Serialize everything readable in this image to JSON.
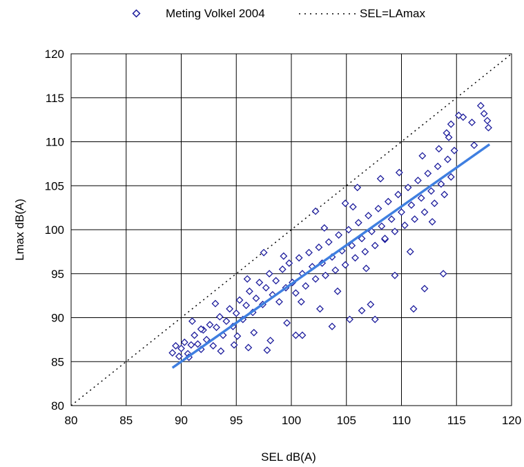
{
  "chart_data": {
    "type": "scatter",
    "title": "",
    "xlabel": "SEL dB(A)",
    "ylabel": "Lmax dB(A)",
    "xlim": [
      80,
      120
    ],
    "ylim": [
      80,
      120
    ],
    "xticks": [
      80,
      85,
      90,
      95,
      100,
      105,
      110,
      115,
      120
    ],
    "yticks": [
      80,
      85,
      90,
      95,
      100,
      105,
      110,
      115,
      120
    ],
    "grid": true,
    "legend": {
      "placement": "top",
      "entries": [
        {
          "label": "Meting Volkel 2004",
          "marker": "open-diamond",
          "color": "#1c1c9c"
        },
        {
          "label": "SEL=LAmax",
          "style": "dotted-line",
          "color": "#000000"
        }
      ]
    },
    "series": [
      {
        "name": "Meting Volkel 2004",
        "marker": "open-diamond",
        "color": "#1c1c9c",
        "points": [
          [
            89.2,
            86.0
          ],
          [
            89.5,
            86.8
          ],
          [
            89.8,
            85.6
          ],
          [
            90.0,
            86.5
          ],
          [
            90.3,
            87.2
          ],
          [
            90.6,
            85.9
          ],
          [
            90.9,
            86.9
          ],
          [
            91.2,
            88.0
          ],
          [
            91.5,
            87.0
          ],
          [
            91.8,
            86.4
          ],
          [
            92.0,
            88.6
          ],
          [
            92.3,
            87.5
          ],
          [
            92.6,
            89.2
          ],
          [
            92.9,
            86.8
          ],
          [
            93.2,
            88.9
          ],
          [
            93.5,
            90.1
          ],
          [
            93.8,
            88.0
          ],
          [
            94.1,
            89.6
          ],
          [
            94.4,
            91.0
          ],
          [
            94.7,
            89.0
          ],
          [
            95.0,
            90.5
          ],
          [
            95.3,
            92.0
          ],
          [
            95.6,
            89.8
          ],
          [
            95.9,
            91.4
          ],
          [
            96.2,
            93.0
          ],
          [
            96.5,
            90.6
          ],
          [
            96.8,
            92.2
          ],
          [
            97.1,
            94.0
          ],
          [
            97.4,
            91.5
          ],
          [
            97.7,
            93.4
          ],
          [
            98.0,
            95.0
          ],
          [
            98.3,
            92.6
          ],
          [
            98.6,
            94.2
          ],
          [
            98.9,
            91.8
          ],
          [
            99.2,
            95.5
          ],
          [
            99.5,
            93.4
          ],
          [
            99.8,
            96.2
          ],
          [
            100.1,
            94.0
          ],
          [
            100.4,
            92.8
          ],
          [
            100.7,
            96.8
          ],
          [
            101.0,
            95.0
          ],
          [
            101.3,
            93.6
          ],
          [
            101.6,
            97.4
          ],
          [
            101.9,
            95.8
          ],
          [
            102.2,
            94.4
          ],
          [
            102.5,
            98.0
          ],
          [
            102.8,
            96.2
          ],
          [
            103.1,
            94.8
          ],
          [
            103.4,
            98.6
          ],
          [
            103.7,
            96.9
          ],
          [
            104.0,
            95.4
          ],
          [
            104.3,
            99.4
          ],
          [
            104.6,
            97.6
          ],
          [
            104.9,
            96.0
          ],
          [
            105.2,
            100.0
          ],
          [
            105.5,
            98.2
          ],
          [
            105.8,
            96.8
          ],
          [
            106.1,
            100.8
          ],
          [
            106.4,
            99.0
          ],
          [
            106.7,
            97.5
          ],
          [
            107.0,
            101.6
          ],
          [
            107.3,
            99.8
          ],
          [
            107.6,
            98.2
          ],
          [
            107.9,
            102.4
          ],
          [
            108.2,
            100.4
          ],
          [
            108.5,
            98.9
          ],
          [
            108.8,
            103.2
          ],
          [
            109.1,
            101.2
          ],
          [
            109.4,
            99.8
          ],
          [
            109.7,
            104.0
          ],
          [
            110.0,
            102.0
          ],
          [
            110.3,
            100.5
          ],
          [
            110.6,
            104.8
          ],
          [
            110.9,
            102.8
          ],
          [
            111.2,
            101.2
          ],
          [
            111.5,
            105.6
          ],
          [
            111.8,
            103.6
          ],
          [
            112.1,
            102.0
          ],
          [
            112.4,
            106.4
          ],
          [
            112.7,
            104.4
          ],
          [
            113.0,
            103.0
          ],
          [
            113.3,
            107.2
          ],
          [
            113.6,
            105.2
          ],
          [
            113.9,
            104.0
          ],
          [
            114.2,
            108.0
          ],
          [
            114.5,
            106.0
          ],
          [
            114.8,
            109.0
          ],
          [
            115.2,
            113.0
          ],
          [
            115.6,
            112.8
          ],
          [
            116.4,
            112.2
          ],
          [
            117.2,
            114.1
          ],
          [
            117.5,
            113.2
          ],
          [
            117.8,
            112.4
          ],
          [
            116.6,
            109.6
          ],
          [
            117.9,
            111.6
          ],
          [
            114.1,
            111.0
          ],
          [
            114.5,
            112.0
          ],
          [
            111.1,
            91.0
          ],
          [
            112.1,
            93.3
          ],
          [
            113.8,
            95.0
          ],
          [
            109.4,
            94.8
          ],
          [
            107.2,
            91.5
          ],
          [
            106.4,
            90.8
          ],
          [
            105.3,
            89.8
          ],
          [
            107.6,
            89.8
          ],
          [
            103.7,
            89.0
          ],
          [
            102.6,
            91.0
          ],
          [
            100.4,
            88.0
          ],
          [
            101.0,
            88.0
          ],
          [
            98.1,
            87.4
          ],
          [
            96.1,
            86.6
          ],
          [
            97.8,
            86.3
          ],
          [
            102.2,
            102.1
          ],
          [
            97.5,
            97.4
          ],
          [
            104.9,
            103.0
          ],
          [
            106.0,
            104.8
          ],
          [
            91.8,
            88.7
          ],
          [
            93.6,
            86.2
          ],
          [
            95.1,
            87.9
          ],
          [
            99.6,
            89.4
          ],
          [
            108.5,
            99.0
          ],
          [
            110.8,
            97.5
          ],
          [
            112.8,
            100.9
          ],
          [
            106.8,
            95.6
          ],
          [
            104.2,
            93.0
          ],
          [
            100.9,
            91.8
          ],
          [
            96.6,
            88.3
          ],
          [
            94.8,
            86.9
          ],
          [
            90.7,
            85.5
          ],
          [
            109.8,
            106.5
          ],
          [
            111.9,
            108.4
          ],
          [
            108.1,
            105.8
          ],
          [
            105.6,
            102.6
          ],
          [
            103.0,
            100.2
          ],
          [
            99.3,
            97.0
          ],
          [
            96.0,
            94.4
          ],
          [
            93.1,
            91.6
          ],
          [
            91.0,
            89.6
          ],
          [
            113.4,
            109.2
          ],
          [
            114.3,
            110.5
          ]
        ]
      }
    ],
    "reference_line": {
      "name": "SEL=LAmax",
      "x": [
        80,
        120
      ],
      "y": [
        80,
        120
      ],
      "style": "dotted",
      "color": "#000000"
    },
    "trend_line": {
      "x": [
        89.2,
        118.0
      ],
      "y": [
        84.3,
        109.7
      ],
      "color": "#3f7fe0"
    }
  }
}
